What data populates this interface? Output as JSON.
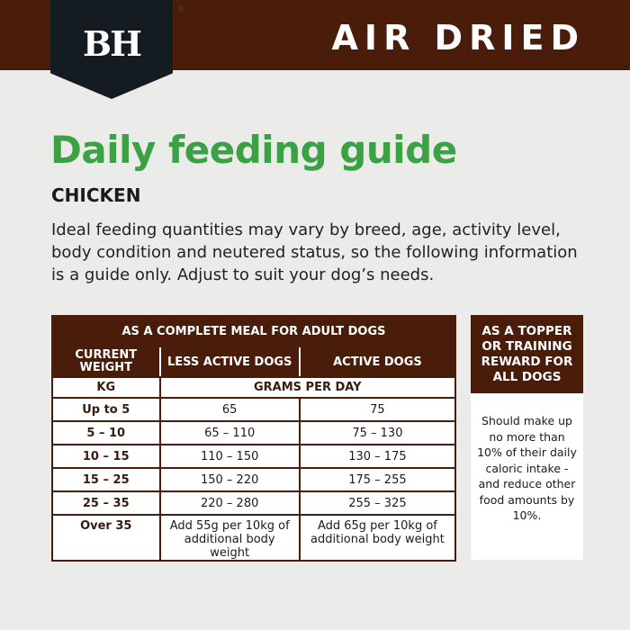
{
  "header": {
    "logo_text": "BH",
    "registered": "®",
    "title": "AIR DRIED"
  },
  "title": "Daily feeding guide",
  "subtitle": "CHICKEN",
  "intro": "Ideal feeding quantities may vary by breed, age, activity level, body condition and neutered status, so the following information is a guide only. Adjust to suit your dog’s needs.",
  "table": {
    "title": "AS A COMPLETE MEAL FOR ADULT DOGS",
    "columns": [
      "CURRENT WEIGHT",
      "LESS ACTIVE DOGS",
      "ACTIVE DOGS"
    ],
    "unit_weight": "KG",
    "unit_amount": "GRAMS PER DAY",
    "rows": [
      {
        "weight": "Up to 5",
        "less": "65",
        "active": "75"
      },
      {
        "weight": "5 – 10",
        "less": "65 – 110",
        "active": "75 – 130"
      },
      {
        "weight": "10 – 15",
        "less": "110 – 150",
        "active": "130 – 175"
      },
      {
        "weight": "15 – 25",
        "less": "150 – 220",
        "active": "175 – 255"
      },
      {
        "weight": "25 – 35",
        "less": "220 – 280",
        "active": "255 – 325"
      },
      {
        "weight": "Over 35",
        "less": "Add 55g per 10kg of additional body weight",
        "active": "Add 65g per 10kg of additional body weight"
      }
    ]
  },
  "side": {
    "title": "AS A TOPPER OR TRAINING REWARD FOR ALL DOGS",
    "text": "Should make up no more than 10% of their daily caloric intake - and reduce other food amounts by 10%."
  },
  "colors": {
    "brown": "#4a1d0a",
    "green": "#3ba144",
    "logo": "#141b21"
  }
}
